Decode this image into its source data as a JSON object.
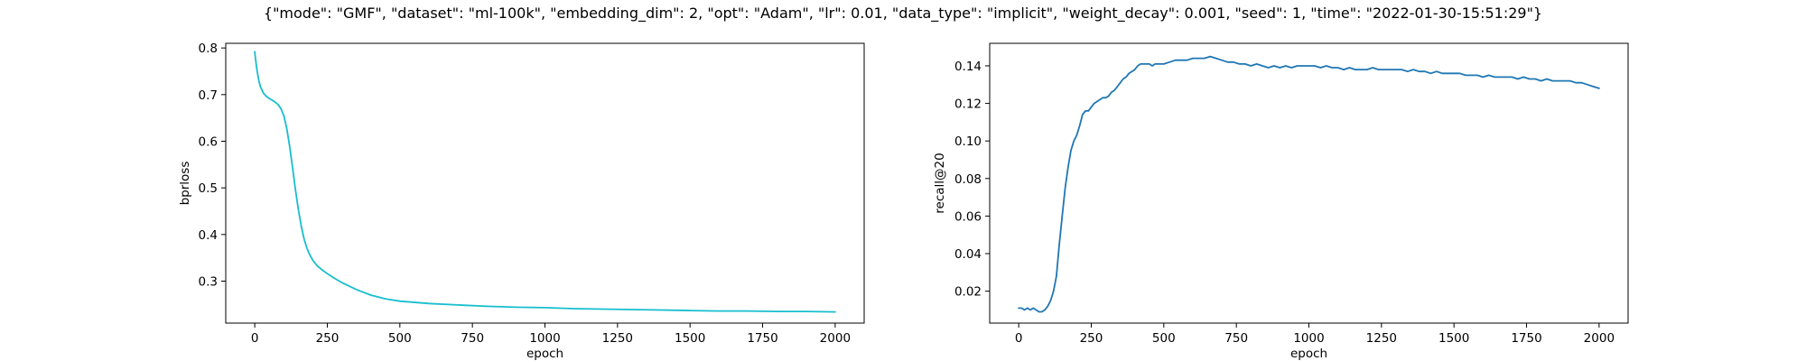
{
  "figure": {
    "title": "{\"mode\": \"GMF\", \"dataset\": \"ml-100k\", \"embedding_dim\": 2, \"opt\": \"Adam\", \"lr\": 0.01, \"data_type\": \"implicit\", \"weight_decay\": 0.001, \"seed\": 1, \"time\": \"2022-01-30-15:51:29\"}"
  },
  "chart_data": [
    {
      "type": "line",
      "title": "",
      "xlabel": "epoch",
      "ylabel": "bprloss",
      "xlim": [
        -100,
        2100
      ],
      "ylim": [
        0.21,
        0.81
      ],
      "xticks": [
        0,
        250,
        500,
        750,
        1000,
        1250,
        1500,
        1750,
        2000
      ],
      "xtick_labels": [
        "0",
        "250",
        "500",
        "750",
        "1000",
        "1250",
        "1500",
        "1750",
        "2000"
      ],
      "yticks": [
        0.3,
        0.4,
        0.5,
        0.6,
        0.7,
        0.8
      ],
      "ytick_labels": [
        "0.3",
        "0.4",
        "0.5",
        "0.6",
        "0.7",
        "0.8"
      ],
      "grid": false,
      "series": [
        {
          "color": "#17becf",
          "x": [
            0,
            5,
            10,
            15,
            20,
            30,
            40,
            50,
            60,
            70,
            80,
            90,
            100,
            110,
            120,
            130,
            140,
            150,
            160,
            170,
            180,
            190,
            200,
            215,
            230,
            250,
            275,
            300,
            350,
            400,
            450,
            500,
            600,
            700,
            800,
            900,
            1000,
            1100,
            1200,
            1300,
            1400,
            1500,
            1600,
            1700,
            1800,
            1900,
            2000
          ],
          "y": [
            0.792,
            0.765,
            0.743,
            0.727,
            0.716,
            0.703,
            0.696,
            0.692,
            0.688,
            0.684,
            0.679,
            0.67,
            0.655,
            0.628,
            0.59,
            0.545,
            0.497,
            0.455,
            0.418,
            0.39,
            0.37,
            0.356,
            0.345,
            0.333,
            0.325,
            0.316,
            0.306,
            0.297,
            0.282,
            0.27,
            0.262,
            0.257,
            0.252,
            0.249,
            0.246,
            0.244,
            0.243,
            0.241,
            0.24,
            0.239,
            0.238,
            0.237,
            0.236,
            0.236,
            0.235,
            0.235,
            0.234
          ]
        }
      ]
    },
    {
      "type": "line",
      "title": "",
      "xlabel": "epoch",
      "ylabel": "recall@20",
      "xlim": [
        -100,
        2100
      ],
      "ylim": [
        0.003,
        0.152
      ],
      "xticks": [
        0,
        250,
        500,
        750,
        1000,
        1250,
        1500,
        1750,
        2000
      ],
      "xtick_labels": [
        "0",
        "250",
        "500",
        "750",
        "1000",
        "1250",
        "1500",
        "1750",
        "2000"
      ],
      "yticks": [
        0.02,
        0.04,
        0.06,
        0.08,
        0.1,
        0.12,
        0.14
      ],
      "ytick_labels": [
        "0.02",
        "0.04",
        "0.06",
        "0.08",
        "0.10",
        "0.12",
        "0.14"
      ],
      "grid": false,
      "series": [
        {
          "color": "#1f77b4",
          "x": [
            0,
            10,
            20,
            30,
            40,
            50,
            60,
            70,
            80,
            90,
            100,
            110,
            120,
            130,
            140,
            150,
            160,
            170,
            180,
            190,
            200,
            210,
            220,
            230,
            240,
            250,
            260,
            270,
            280,
            290,
            300,
            310,
            320,
            330,
            340,
            350,
            360,
            370,
            380,
            390,
            400,
            410,
            420,
            430,
            440,
            450,
            460,
            470,
            480,
            490,
            500,
            520,
            540,
            560,
            580,
            600,
            620,
            640,
            660,
            680,
            700,
            720,
            740,
            760,
            780,
            800,
            820,
            840,
            860,
            880,
            900,
            920,
            940,
            960,
            980,
            1000,
            1020,
            1040,
            1060,
            1080,
            1100,
            1120,
            1140,
            1160,
            1180,
            1200,
            1220,
            1240,
            1260,
            1280,
            1300,
            1320,
            1340,
            1360,
            1380,
            1400,
            1420,
            1440,
            1460,
            1480,
            1500,
            1520,
            1540,
            1560,
            1580,
            1600,
            1620,
            1640,
            1660,
            1680,
            1700,
            1720,
            1740,
            1760,
            1780,
            1800,
            1820,
            1840,
            1860,
            1880,
            1900,
            1920,
            1940,
            1960,
            1980,
            2000
          ],
          "y": [
            0.011,
            0.011,
            0.01,
            0.011,
            0.01,
            0.011,
            0.01,
            0.009,
            0.009,
            0.01,
            0.012,
            0.015,
            0.02,
            0.028,
            0.045,
            0.06,
            0.075,
            0.086,
            0.095,
            0.1,
            0.103,
            0.108,
            0.114,
            0.116,
            0.116,
            0.118,
            0.12,
            0.121,
            0.122,
            0.123,
            0.123,
            0.124,
            0.126,
            0.127,
            0.129,
            0.131,
            0.133,
            0.134,
            0.136,
            0.137,
            0.138,
            0.14,
            0.141,
            0.141,
            0.141,
            0.141,
            0.14,
            0.141,
            0.141,
            0.141,
            0.141,
            0.142,
            0.143,
            0.143,
            0.143,
            0.144,
            0.144,
            0.144,
            0.145,
            0.144,
            0.143,
            0.142,
            0.142,
            0.141,
            0.141,
            0.14,
            0.141,
            0.14,
            0.139,
            0.14,
            0.139,
            0.14,
            0.139,
            0.14,
            0.14,
            0.14,
            0.14,
            0.139,
            0.14,
            0.139,
            0.139,
            0.138,
            0.139,
            0.138,
            0.138,
            0.138,
            0.139,
            0.138,
            0.138,
            0.138,
            0.138,
            0.138,
            0.137,
            0.138,
            0.137,
            0.137,
            0.136,
            0.137,
            0.136,
            0.136,
            0.136,
            0.136,
            0.135,
            0.135,
            0.135,
            0.134,
            0.135,
            0.134,
            0.134,
            0.134,
            0.134,
            0.133,
            0.134,
            0.133,
            0.133,
            0.132,
            0.133,
            0.132,
            0.132,
            0.132,
            0.132,
            0.131,
            0.131,
            0.13,
            0.129,
            0.128
          ]
        }
      ]
    }
  ]
}
